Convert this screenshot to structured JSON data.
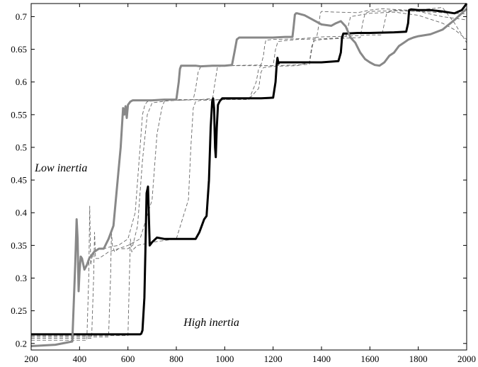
{
  "chart_data": {
    "type": "line",
    "title": "",
    "xlabel": "",
    "ylabel": "",
    "xlim": [
      200,
      2000
    ],
    "ylim": [
      0.19,
      0.72
    ],
    "grid": false,
    "x_ticks": [
      200,
      400,
      600,
      800,
      1000,
      1200,
      1400,
      1600,
      1800,
      2000
    ],
    "y_ticks": [
      0.2,
      0.25,
      0.3,
      0.35,
      0.4,
      0.45,
      0.5,
      0.55,
      0.6,
      0.65,
      0.7
    ],
    "annotations": [
      {
        "text": "Low inertia",
        "x": 215,
        "y": 0.463
      },
      {
        "text": "High inertia",
        "x": 830,
        "y": 0.227
      }
    ],
    "series": [
      {
        "color": "#000000",
        "style": "solid",
        "weight": "heavy",
        "x": [
          200,
          650,
          655,
          660,
          668,
          672,
          677,
          683,
          690,
          700,
          720,
          750,
          800,
          880,
          895,
          905,
          915,
          925,
          935,
          942,
          948,
          952,
          956,
          960,
          963,
          967,
          972,
          980,
          990,
          1000,
          1050,
          1100,
          1150,
          1200,
          1210,
          1215,
          1218,
          1222,
          1226,
          1235,
          1260,
          1300,
          1400,
          1470,
          1480,
          1485,
          1490,
          1500,
          1550,
          1600,
          1700,
          1750,
          1758,
          1762,
          1770,
          1800,
          1850,
          1900,
          1950,
          1980,
          2000
        ],
        "y": [
          0.214,
          0.214,
          0.215,
          0.22,
          0.27,
          0.34,
          0.43,
          0.44,
          0.35,
          0.355,
          0.362,
          0.36,
          0.36,
          0.36,
          0.37,
          0.38,
          0.39,
          0.395,
          0.45,
          0.53,
          0.57,
          0.575,
          0.56,
          0.5,
          0.485,
          0.53,
          0.565,
          0.571,
          0.575,
          0.575,
          0.575,
          0.575,
          0.575,
          0.576,
          0.6,
          0.628,
          0.637,
          0.628,
          0.63,
          0.63,
          0.63,
          0.63,
          0.63,
          0.632,
          0.645,
          0.668,
          0.674,
          0.674,
          0.675,
          0.675,
          0.676,
          0.677,
          0.69,
          0.71,
          0.711,
          0.71,
          0.71,
          0.708,
          0.705,
          0.71,
          0.72
        ]
      },
      {
        "color": "#888888",
        "style": "solid",
        "weight": "heavy",
        "x": [
          200,
          300,
          370,
          382,
          388,
          392,
          396,
          400,
          405,
          410,
          420,
          430,
          440,
          460,
          480,
          500,
          520,
          540,
          550,
          560,
          570,
          575,
          580,
          585,
          590,
          595,
          600,
          610,
          620,
          650,
          700,
          750,
          800,
          810,
          815,
          820,
          840,
          880,
          900,
          950,
          1000,
          1030,
          1040,
          1050,
          1060,
          1100,
          1200,
          1250,
          1280,
          1285,
          1290,
          1295,
          1300,
          1330,
          1360,
          1400,
          1440,
          1460,
          1480,
          1500,
          1520,
          1540,
          1560,
          1580,
          1600,
          1620,
          1640,
          1660,
          1680,
          1700,
          1720,
          1740,
          1760,
          1780,
          1800,
          1850,
          1900,
          1950,
          2000
        ],
        "y": [
          0.196,
          0.198,
          0.203,
          0.32,
          0.39,
          0.36,
          0.28,
          0.31,
          0.333,
          0.33,
          0.313,
          0.32,
          0.33,
          0.34,
          0.345,
          0.345,
          0.36,
          0.38,
          0.42,
          0.46,
          0.5,
          0.53,
          0.56,
          0.55,
          0.563,
          0.545,
          0.565,
          0.57,
          0.572,
          0.572,
          0.572,
          0.573,
          0.573,
          0.6,
          0.62,
          0.625,
          0.625,
          0.625,
          0.624,
          0.625,
          0.625,
          0.626,
          0.645,
          0.665,
          0.668,
          0.668,
          0.668,
          0.669,
          0.669,
          0.685,
          0.703,
          0.705,
          0.705,
          0.702,
          0.696,
          0.688,
          0.686,
          0.69,
          0.693,
          0.685,
          0.668,
          0.66,
          0.645,
          0.635,
          0.63,
          0.626,
          0.625,
          0.63,
          0.64,
          0.645,
          0.655,
          0.66,
          0.665,
          0.668,
          0.67,
          0.673,
          0.68,
          0.695,
          0.712
        ]
      },
      {
        "color": "#666666",
        "style": "dashed",
        "weight": "light",
        "x": [
          200,
          430,
          438,
          442,
          446,
          450,
          460,
          480,
          500,
          530,
          560,
          600,
          630,
          650,
          660,
          670,
          680,
          700,
          750,
          800,
          870,
          880,
          890,
          900,
          920,
          1000,
          1150,
          1160,
          1165,
          1170,
          1200,
          1300,
          1380,
          1390,
          1395,
          1400,
          1450,
          1550,
          1600,
          1650,
          1700,
          1750,
          1800,
          1850,
          1900,
          1950,
          2000
        ],
        "y": [
          0.205,
          0.205,
          0.3,
          0.41,
          0.32,
          0.33,
          0.34,
          0.345,
          0.345,
          0.348,
          0.35,
          0.36,
          0.4,
          0.5,
          0.55,
          0.565,
          0.57,
          0.571,
          0.572,
          0.572,
          0.573,
          0.59,
          0.615,
          0.623,
          0.624,
          0.625,
          0.626,
          0.64,
          0.655,
          0.664,
          0.665,
          0.666,
          0.668,
          0.69,
          0.705,
          0.708,
          0.707,
          0.706,
          0.71,
          0.712,
          0.711,
          0.71,
          0.71,
          0.712,
          0.714,
          0.69,
          0.66
        ]
      },
      {
        "color": "#666666",
        "style": "dashed",
        "weight": "light",
        "x": [
          200,
          520,
          528,
          532,
          536,
          545,
          560,
          600,
          650,
          700,
          720,
          740,
          750,
          760,
          800,
          900,
          950,
          960,
          970,
          1000,
          1100,
          1200,
          1210,
          1220,
          1300,
          1400,
          1500,
          1510,
          1520,
          1600,
          1700,
          1800,
          1900,
          1950,
          2000
        ],
        "y": [
          0.21,
          0.21,
          0.3,
          0.37,
          0.35,
          0.34,
          0.345,
          0.35,
          0.36,
          0.42,
          0.52,
          0.56,
          0.57,
          0.572,
          0.573,
          0.573,
          0.575,
          0.6,
          0.623,
          0.625,
          0.625,
          0.625,
          0.65,
          0.662,
          0.665,
          0.666,
          0.668,
          0.685,
          0.7,
          0.705,
          0.707,
          0.702,
          0.69,
          0.68,
          0.665
        ]
      },
      {
        "color": "#666666",
        "style": "dashed",
        "weight": "light",
        "x": [
          200,
          600,
          606,
          610,
          616,
          625,
          640,
          700,
          800,
          850,
          860,
          870,
          880,
          900,
          1000,
          1100,
          1130,
          1140,
          1150,
          1200,
          1300,
          1350,
          1360,
          1370,
          1400,
          1500,
          1600,
          1650,
          1660,
          1670,
          1700,
          1800,
          1900,
          2000
        ],
        "y": [
          0.212,
          0.212,
          0.3,
          0.36,
          0.34,
          0.345,
          0.35,
          0.355,
          0.36,
          0.42,
          0.5,
          0.56,
          0.57,
          0.572,
          0.573,
          0.573,
          0.6,
          0.62,
          0.625,
          0.625,
          0.626,
          0.627,
          0.65,
          0.668,
          0.669,
          0.67,
          0.672,
          0.672,
          0.69,
          0.706,
          0.71,
          0.708,
          0.706,
          0.704
        ]
      },
      {
        "color": "#666666",
        "style": "dashed",
        "weight": "light",
        "x": [
          200,
          450,
          458,
          462,
          466,
          480,
          520,
          560,
          600,
          620,
          640,
          660,
          680,
          700,
          760,
          800,
          900,
          1000,
          1100,
          1140,
          1150,
          1160,
          1200,
          1300,
          1350,
          1360,
          1370,
          1400,
          1500,
          1560,
          1570,
          1580,
          1600,
          1700,
          1800,
          1900,
          2000
        ],
        "y": [
          0.208,
          0.208,
          0.3,
          0.37,
          0.33,
          0.33,
          0.34,
          0.345,
          0.345,
          0.35,
          0.38,
          0.48,
          0.55,
          0.568,
          0.571,
          0.572,
          0.573,
          0.573,
          0.574,
          0.59,
          0.615,
          0.622,
          0.624,
          0.625,
          0.63,
          0.655,
          0.663,
          0.665,
          0.667,
          0.668,
          0.69,
          0.705,
          0.708,
          0.709,
          0.708,
          0.7,
          0.695
        ]
      }
    ]
  }
}
